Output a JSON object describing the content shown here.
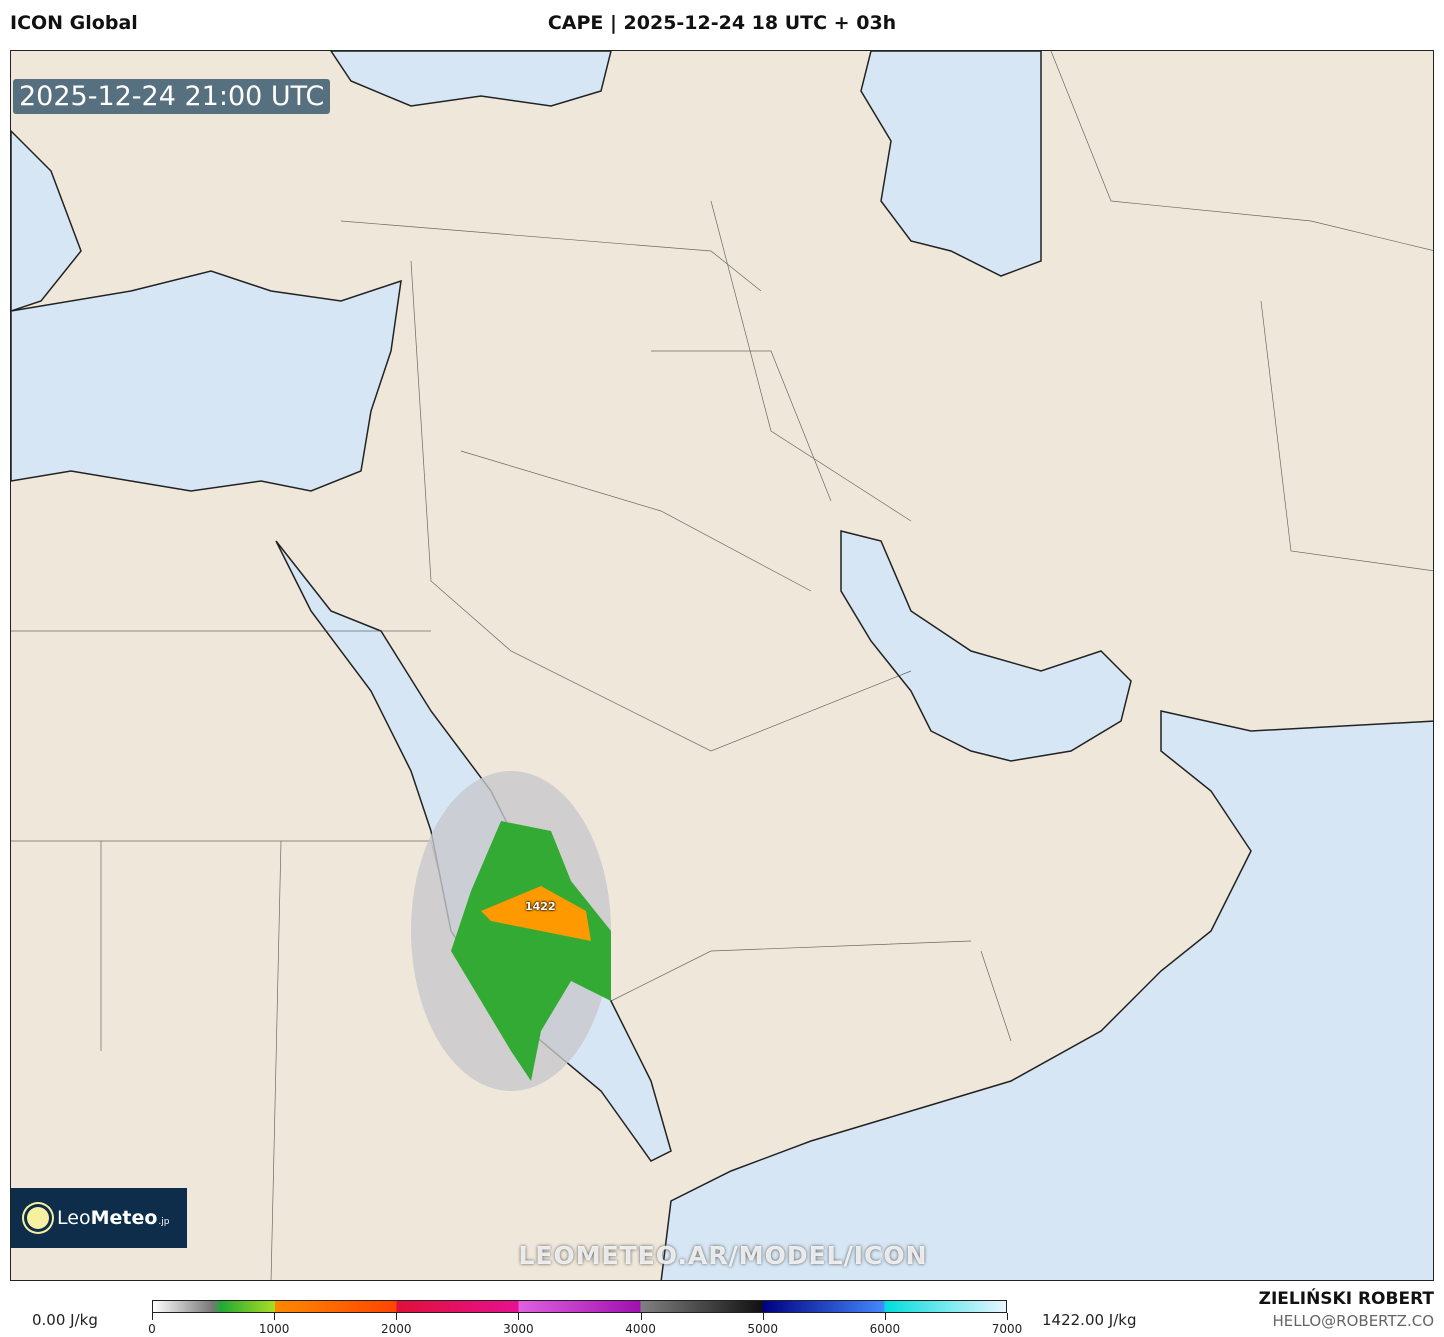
{
  "header": {
    "model": "ICON Global",
    "title": "CAPE | 2025-12-24 18 UTC + 03h"
  },
  "map": {
    "valid_time": "2025-12-24 21:00 UTC",
    "max_label": "1422",
    "watermark": "LEOMETEO.AR/MODEL/ICON",
    "logo": "LeoMeteo.jp",
    "colors": {
      "land": "#efe7da",
      "sea": "#d6e6f4",
      "border": "#222222"
    }
  },
  "legend": {
    "min": "0.00 J/kg",
    "max": "1422.00 J/kg",
    "ticks": [
      "0",
      "1000",
      "2000",
      "3000",
      "4000",
      "5000",
      "6000",
      "7000"
    ],
    "units": "J/kg"
  },
  "credits": {
    "author": "ZIELIŃSKI ROBERT",
    "email": "HELLO@ROBERTZ.CO"
  }
}
